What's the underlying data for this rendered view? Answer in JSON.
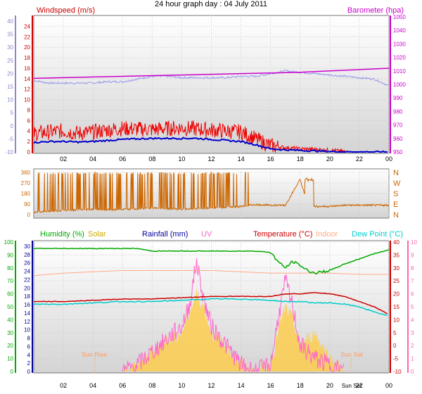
{
  "title": "24 hour graph day : 04 July 2011",
  "colors": {
    "windspeed": "#ee0000",
    "windavg": "#0000cc",
    "barometer": "#cc00cc",
    "baroGrey": "#9999ee",
    "winddir": "#cc6600",
    "humidity": "#00aa00",
    "solar": "#ffcc44",
    "rainfall": "#000099",
    "uv": "#ff66cc",
    "temperature": "#cc0000",
    "indoor": "#ffaa88",
    "dewpoint": "#00cccc",
    "axisBlue": "#8888cc",
    "axisMagenta": "#cc00cc",
    "axisGreen": "#00aa00",
    "axisPink": "#ff66aa",
    "grid": "#cccccc"
  },
  "chart_data": [
    {
      "type": "line",
      "title": "",
      "legend": [
        "Windspeed (m/s)",
        "Barometer (hpa)"
      ],
      "x_ticks": [
        "02",
        "04",
        "06",
        "08",
        "10",
        "12",
        "14",
        "16",
        "18",
        "20",
        "22",
        "00"
      ],
      "left_inner_ticks": [
        "24",
        "22",
        "20",
        "18",
        "16",
        "14",
        "12",
        "10",
        "8",
        "6",
        "4",
        "2",
        "0"
      ],
      "left_outer_ticks": [
        "40",
        "35",
        "30",
        "25",
        "20",
        "15",
        "10",
        "5",
        "0",
        "-5",
        "-10"
      ],
      "right_ticks": [
        "1050",
        "1040",
        "1030",
        "1020",
        "1010",
        "1000",
        "990",
        "980",
        "970",
        "960",
        "950"
      ],
      "ylim_wind": [
        0,
        25
      ],
      "ylim_baro": [
        950,
        1050
      ],
      "series": [
        {
          "name": "Windspeed (m/s)",
          "x": [
            0,
            1,
            2,
            3,
            4,
            5,
            6,
            7,
            8,
            9,
            10,
            11,
            12,
            13,
            14,
            15,
            16,
            17,
            18,
            19,
            20,
            21,
            22,
            23,
            24
          ],
          "values": [
            3.5,
            3.8,
            4,
            3.6,
            3.8,
            4.2,
            4.5,
            4.4,
            4.3,
            4.5,
            4.6,
            4.4,
            4.2,
            4,
            3.8,
            2.5,
            1.2,
            0.8,
            0.6,
            0.5,
            0.3,
            0.1,
            0,
            0,
            0
          ]
        },
        {
          "x": [
            0,
            1,
            2,
            3,
            4,
            5,
            6,
            7,
            8,
            9,
            10,
            11,
            12,
            13,
            14,
            15,
            16,
            17,
            18,
            19,
            20,
            21,
            22,
            23,
            24
          ],
          "values": [
            1.8,
            2,
            2,
            1.9,
            2,
            2.2,
            2.4,
            2.5,
            2.6,
            2.6,
            2.6,
            2.6,
            2.4,
            2.2,
            2,
            1.4,
            0.6,
            0.4,
            0.3,
            0.2,
            0.1,
            0,
            0,
            0,
            0
          ]
        },
        {
          "name": "Barometer (hpa)",
          "x": [
            0,
            2,
            4,
            6,
            8,
            10,
            12,
            14,
            16,
            18,
            20,
            22,
            24
          ],
          "values": [
            1004.5,
            1005,
            1005.5,
            1006,
            1006.5,
            1007,
            1007.5,
            1008,
            1008.5,
            1009,
            1010,
            1011,
            1012
          ]
        },
        {
          "x": [
            0,
            1,
            2,
            3,
            4,
            5,
            6,
            7,
            8,
            9,
            10,
            11,
            12,
            13,
            14,
            15,
            16,
            17,
            18,
            19,
            20,
            21,
            22,
            23,
            24
          ],
          "values": [
            1003,
            1001,
            1001,
            1001,
            1001,
            1002,
            1002,
            1004,
            1006,
            1006,
            1005,
            1005,
            1005,
            1005,
            1006,
            1006,
            1008,
            1010,
            1009,
            1008,
            1007,
            1006,
            1005,
            1004,
            999
          ]
        }
      ]
    },
    {
      "type": "line",
      "title": "",
      "x_ticks": [
        "02",
        "04",
        "06",
        "08",
        "10",
        "12",
        "14",
        "16",
        "18",
        "20",
        "22",
        "00"
      ],
      "left_ticks": [
        "360",
        "270",
        "180",
        "90",
        "0"
      ],
      "right_ticks": [
        "N",
        "W",
        "S",
        "E",
        "N"
      ],
      "ylim": [
        0,
        360
      ],
      "series": [
        {
          "x": [
            0,
            1,
            2,
            3,
            4,
            5,
            6,
            7,
            8,
            9,
            10,
            11,
            12,
            13,
            14,
            14.5,
            15,
            16,
            17,
            18,
            18.5,
            19,
            20,
            21,
            22,
            23,
            24
          ],
          "values": [
            20,
            30,
            35,
            40,
            45,
            40,
            45,
            50,
            55,
            50,
            45,
            50,
            55,
            60,
            70,
            80,
            85,
            80,
            80,
            300,
            85,
            70,
            70,
            80,
            80,
            80,
            80
          ]
        }
      ]
    },
    {
      "type": "line",
      "title": "",
      "legend": [
        "Humidity (%)",
        "Solar",
        "Rainfall (mm)",
        "UV",
        "Temperature (°C)",
        "Indoor",
        "Dew Point (°C)"
      ],
      "x_ticks": [
        "02",
        "04",
        "06",
        "08",
        "10",
        "12",
        "14",
        "16",
        "18",
        "20",
        "Sun Set",
        "22",
        "00"
      ],
      "left_outer_ticks": [
        "100",
        "90",
        "80",
        "70",
        "60",
        "50",
        "40",
        "30",
        "20",
        "10",
        "0"
      ],
      "left_inner_ticks": [
        "30",
        "28",
        "26",
        "24",
        "22",
        "20",
        "18",
        "16",
        "14",
        "12",
        "10",
        "8",
        "6",
        "4",
        "2",
        "0"
      ],
      "right_inner_ticks": [
        "40",
        "35",
        "30",
        "25",
        "20",
        "15",
        "10",
        "5",
        "0",
        "-5",
        "-10"
      ],
      "right_outer_ticks": [
        "10",
        "9",
        "8",
        "7",
        "6",
        "5",
        "4",
        "3",
        "2",
        "1",
        "0"
      ],
      "annotations": [
        "Sun Rise",
        "Sun Set"
      ],
      "ylim_temp": [
        -10,
        40
      ],
      "series": [
        {
          "name": "Humidity (%)",
          "x": [
            0,
            2,
            4,
            6,
            7,
            8,
            10,
            12,
            14,
            15,
            16,
            16.5,
            17,
            17.5,
            18,
            18.5,
            19,
            20,
            21,
            22,
            23,
            24
          ],
          "values": [
            95,
            95,
            95,
            95,
            95,
            93,
            93,
            93,
            93,
            93,
            92,
            85,
            80,
            85,
            82,
            78,
            76,
            78,
            83,
            87,
            91,
            94
          ]
        },
        {
          "name": "Temperature (°C)",
          "x": [
            0,
            2,
            4,
            6,
            8,
            10,
            12,
            14,
            15,
            16,
            17,
            18,
            19,
            20,
            21,
            22,
            23,
            24
          ],
          "values": [
            17,
            17,
            17.5,
            18,
            18,
            18.5,
            19,
            19,
            19,
            19,
            20,
            20,
            20.5,
            20,
            19,
            17,
            15,
            12
          ]
        },
        {
          "name": "Indoor",
          "x": [
            0,
            2,
            4,
            6,
            8,
            10,
            12,
            14,
            16,
            18,
            20,
            22,
            24
          ],
          "values": [
            27,
            28,
            28.5,
            29,
            29,
            29,
            29,
            28.5,
            28,
            28,
            28,
            27.5,
            27.5
          ]
        },
        {
          "name": "Dew Point (°C)",
          "x": [
            0,
            2,
            4,
            6,
            8,
            10,
            12,
            14,
            16,
            17,
            18,
            19,
            20,
            21,
            22,
            23,
            24
          ],
          "values": [
            16,
            16,
            16.5,
            17,
            17,
            17.5,
            18,
            18,
            17.5,
            17,
            17,
            16.5,
            16.5,
            16,
            15,
            13,
            11.5
          ]
        },
        {
          "name": "Solar",
          "x": [
            6,
            7,
            8,
            9,
            10,
            10.5,
            11,
            11.5,
            12,
            13,
            14,
            15,
            16,
            16.5,
            17,
            17.5,
            18,
            19,
            20,
            21
          ],
          "values": [
            0,
            0.5,
            1.5,
            2.5,
            3,
            4.5,
            6,
            5,
            3,
            2,
            0.5,
            0,
            0.5,
            3,
            5,
            4,
            2,
            3,
            1,
            0
          ]
        },
        {
          "name": "UV",
          "x": [
            6,
            7,
            8,
            9,
            10,
            10.5,
            11,
            11.5,
            12,
            13,
            14,
            15,
            16,
            16.5,
            17,
            17.5,
            18,
            19,
            20,
            21
          ],
          "values": [
            0,
            0.5,
            1.5,
            2.5,
            3.5,
            5,
            8.5,
            5.5,
            3.5,
            2,
            0.5,
            0,
            0.5,
            4,
            7,
            5,
            2,
            1,
            0.5,
            0
          ]
        }
      ]
    }
  ]
}
